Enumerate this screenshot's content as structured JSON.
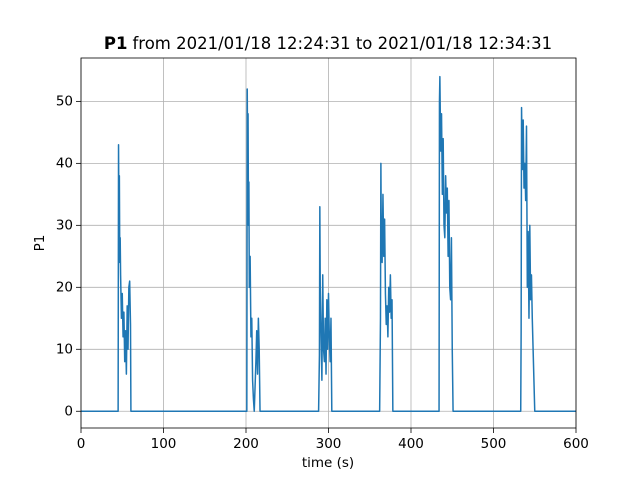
{
  "chart_data": {
    "type": "line",
    "title": {
      "bold": "P1",
      "text": "from 2021/01/18 12:24:31 to 2021/01/18 12:34:31"
    },
    "xlabel": "time (s)",
    "ylabel": "P1",
    "xlim": [
      0,
      600
    ],
    "ylim": [
      -2.7,
      57.0
    ],
    "xticks": [
      0,
      100,
      200,
      300,
      400,
      500,
      600
    ],
    "yticks": [
      0,
      10,
      20,
      30,
      40,
      50
    ],
    "grid": true,
    "x": [
      0,
      45,
      45.5,
      46,
      46.5,
      47,
      47.5,
      48,
      49,
      50,
      51,
      52,
      53,
      54,
      55,
      56,
      57,
      58,
      59,
      60,
      60.5,
      201,
      201.5,
      202,
      202.5,
      203,
      203.5,
      204,
      205,
      206,
      207,
      208,
      209,
      210,
      211,
      212,
      213,
      214,
      215,
      216,
      217,
      288,
      289,
      289.5,
      290,
      291,
      292,
      293,
      294,
      295,
      296,
      297,
      298,
      299,
      300,
      301,
      302,
      303,
      304,
      362,
      363,
      363.5,
      364,
      365,
      366,
      367,
      368,
      369,
      370,
      371,
      372,
      373,
      374,
      375,
      376,
      377,
      378,
      434,
      434.5,
      435,
      436,
      437,
      438,
      439,
      440,
      441,
      442,
      443,
      444,
      445,
      446,
      447,
      448,
      449,
      450,
      451,
      533,
      533.5,
      534,
      535,
      536,
      537,
      538,
      539,
      540,
      541,
      542,
      543,
      544,
      545,
      546,
      547,
      548,
      549,
      550,
      600
    ],
    "series": [
      {
        "name": "P1",
        "color": "#1f77b4",
        "values": [
          0,
          0,
          43,
          30,
          38,
          24,
          28,
          22,
          15,
          19,
          12,
          16,
          8,
          13,
          6,
          17,
          10,
          20,
          21,
          14,
          0,
          0,
          52,
          40,
          48,
          30,
          37,
          20,
          25,
          12,
          15,
          5,
          2,
          0,
          4,
          8,
          13,
          6,
          15,
          10,
          0,
          0,
          9,
          33,
          20,
          12,
          5,
          22,
          10,
          8,
          15,
          6,
          18,
          10,
          19,
          12,
          8,
          15,
          0,
          0,
          15,
          40,
          28,
          24,
          35,
          25,
          31,
          19,
          14,
          17,
          12,
          20,
          16,
          22,
          15,
          18,
          0,
          0,
          50,
          54,
          42,
          48,
          35,
          44,
          30,
          28,
          38,
          32,
          36,
          25,
          34,
          20,
          18,
          28,
          10,
          0,
          0,
          13,
          49,
          39,
          47,
          36,
          40,
          34,
          46,
          20,
          29,
          15,
          30,
          18,
          22,
          15,
          10,
          5,
          0,
          0
        ]
      }
    ]
  }
}
